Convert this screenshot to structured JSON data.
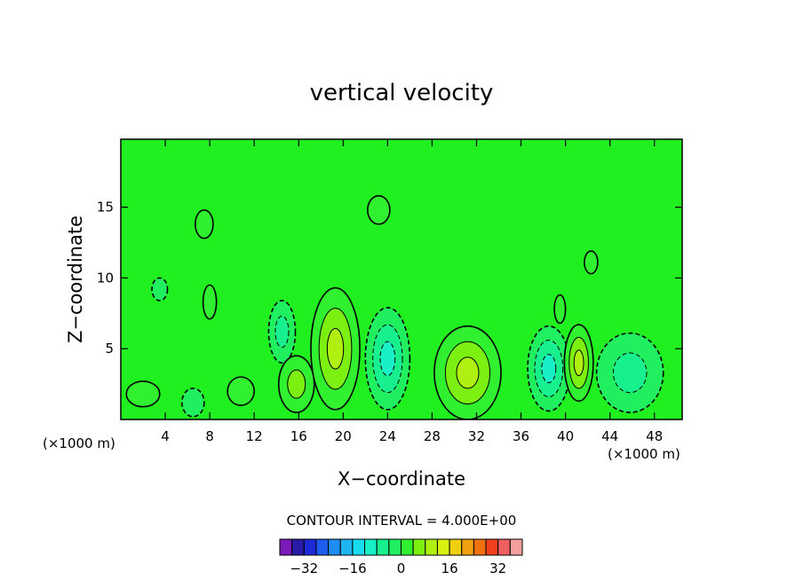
{
  "chart_data": {
    "type": "heatmap",
    "title": "vertical velocity",
    "xlabel": "X−coordinate",
    "ylabel": "Z−coordinate",
    "x_units": "(×1000 m)",
    "z_units": "(×1000 m)",
    "xlim": [
      0,
      50.5
    ],
    "ylim": [
      0,
      19.8
    ],
    "x_ticks": [
      4,
      8,
      12,
      16,
      20,
      24,
      28,
      32,
      36,
      40,
      44,
      48
    ],
    "y_ticks": [
      5,
      10,
      15
    ],
    "contour_interval_label": "CONTOUR INTERVAL = 4.000E+00",
    "contour_interval": 4,
    "colorbar": {
      "levels": [
        -36,
        -32,
        -28,
        -24,
        -20,
        -16,
        -12,
        -8,
        -4,
        0,
        4,
        8,
        12,
        16,
        20,
        24,
        28,
        32,
        36
      ],
      "colors": [
        "#7a1ab8",
        "#2a1aa8",
        "#1e2ad8",
        "#1e5cf0",
        "#1e8cf0",
        "#1eb4f0",
        "#18dcf0",
        "#18f0c8",
        "#18f090",
        "#20f060",
        "#30f030",
        "#7cf010",
        "#b0f010",
        "#d8f010",
        "#f0d010",
        "#f0a010",
        "#f07010",
        "#f04020",
        "#f06060",
        "#f4a0a0"
      ],
      "tick_labels": [
        "−32",
        "−16",
        "0",
        "16",
        "32"
      ],
      "tick_values": [
        -32,
        -16,
        0,
        16,
        32
      ]
    },
    "cells": [
      {
        "x": 2,
        "z": 1.8,
        "v": 2,
        "rx": 1.5,
        "rz": 0.9
      },
      {
        "x": 6.5,
        "z": 1.2,
        "v": -2,
        "rx": 1.0,
        "rz": 1.0
      },
      {
        "x": 10.8,
        "z": 2.0,
        "v": 2,
        "rx": 1.2,
        "rz": 1.0
      },
      {
        "x": 14.5,
        "z": 6.2,
        "v": -6,
        "rx": 1.2,
        "rz": 2.2
      },
      {
        "x": 15.8,
        "z": 2.5,
        "v": 6,
        "rx": 1.6,
        "rz": 2.0
      },
      {
        "x": 19.3,
        "z": 5.0,
        "v": 10,
        "rx": 2.2,
        "rz": 4.3
      },
      {
        "x": 24.0,
        "z": 4.3,
        "v": -10,
        "rx": 2.0,
        "rz": 3.6
      },
      {
        "x": 31.2,
        "z": 3.3,
        "v": 12,
        "rx": 3.0,
        "rz": 3.3
      },
      {
        "x": 38.5,
        "z": 3.6,
        "v": -10,
        "rx": 1.9,
        "rz": 3.0
      },
      {
        "x": 41.2,
        "z": 4.0,
        "v": 12,
        "rx": 1.3,
        "rz": 2.7
      },
      {
        "x": 45.8,
        "z": 3.3,
        "v": -6,
        "rx": 3.0,
        "rz": 2.8
      },
      {
        "x": 8.0,
        "z": 8.3,
        "v": 2,
        "rx": 0.6,
        "rz": 1.2
      },
      {
        "x": 3.5,
        "z": 9.2,
        "v": -2,
        "rx": 0.7,
        "rz": 0.8
      },
      {
        "x": 39.5,
        "z": 7.8,
        "v": 2,
        "rx": 0.5,
        "rz": 1.0
      },
      {
        "x": 7.5,
        "z": 13.8,
        "v": 1,
        "rx": 0.8,
        "rz": 1.0
      },
      {
        "x": 23.2,
        "z": 14.8,
        "v": 1,
        "rx": 1.0,
        "rz": 1.0
      },
      {
        "x": 42.3,
        "z": 11.1,
        "v": 1,
        "rx": 0.6,
        "rz": 0.8
      }
    ]
  }
}
